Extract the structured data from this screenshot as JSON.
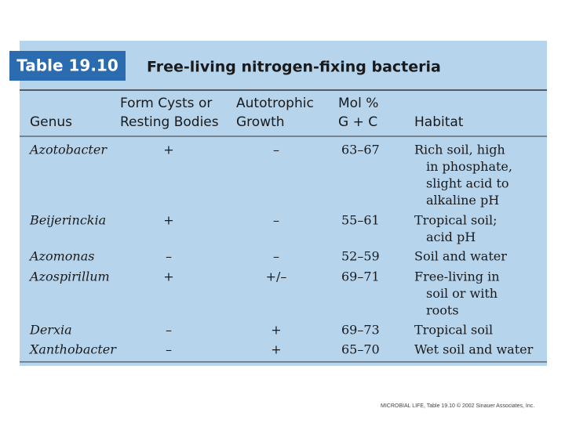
{
  "header": {
    "label": "Table 19.10",
    "title": "Free-living nitrogen-fixing bacteria"
  },
  "table": {
    "columns": [
      [
        "Genus"
      ],
      [
        "Form Cysts or",
        "Resting Bodies"
      ],
      [
        "Autotrophic",
        "Growth"
      ],
      [
        "Mol %",
        "G + C"
      ],
      [
        "Habitat"
      ]
    ],
    "rows": [
      [
        "Azotobacter",
        "+",
        "–",
        "63–67",
        [
          "Rich soil, high",
          "in phosphate,",
          "slight acid to",
          "alkaline pH"
        ]
      ],
      [
        "Beijerinckia",
        "+",
        "–",
        "55–61",
        [
          "Tropical soil;",
          "acid pH"
        ]
      ],
      [
        "Azomonas",
        "–",
        "–",
        "52–59",
        [
          "Soil and water"
        ]
      ],
      [
        "Azospirillum",
        "+",
        "+/–",
        "69–71",
        [
          "Free-living in",
          "soil or with",
          "roots"
        ]
      ],
      [
        "Derxia",
        "–",
        "+",
        "69–73",
        [
          "Tropical soil"
        ]
      ],
      [
        "Xanthobacter",
        "–",
        "+",
        "65–70",
        [
          "Wet soil and water"
        ]
      ]
    ]
  },
  "footer": "MICROBIAL LIFE, Table 19.10 © 2002 Sinauer Associates, Inc."
}
